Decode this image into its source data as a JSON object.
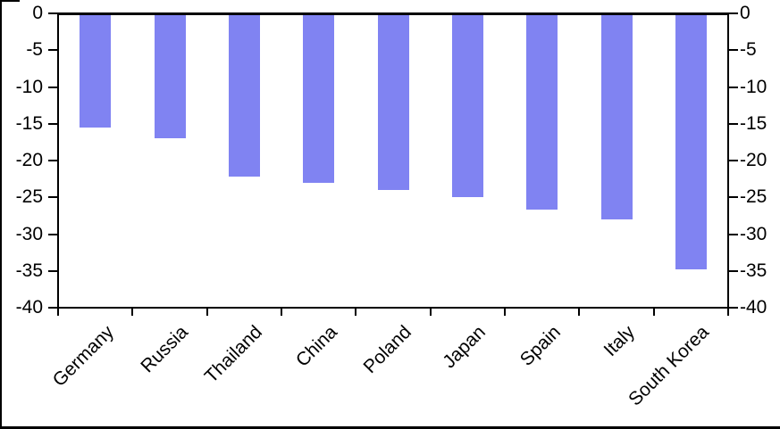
{
  "window": {
    "background": "#FFFFFF",
    "border_color": "#000000"
  },
  "chart_data": {
    "type": "bar",
    "title": "",
    "xlabel": "",
    "ylabel": "",
    "categories": [
      "Germany",
      "Russia",
      "Thailand",
      "China",
      "Poland",
      "Japan",
      "Spain",
      "Italy",
      "South Korea"
    ],
    "values": [
      -15.5,
      -17,
      -22.2,
      -23,
      -24,
      -25,
      -26.7,
      -28,
      -34.8
    ],
    "ylim": [
      -40,
      0
    ],
    "yticks": [
      0,
      -5,
      -10,
      -15,
      -20,
      -25,
      -30,
      -35,
      -40
    ],
    "y_axis_sides": "both",
    "grid": false,
    "legend": null,
    "bar_color": "#8083F2",
    "axis_color": "#000000",
    "tick_label_color": "#000000",
    "x_tick_label_rotation_deg": -45
  }
}
